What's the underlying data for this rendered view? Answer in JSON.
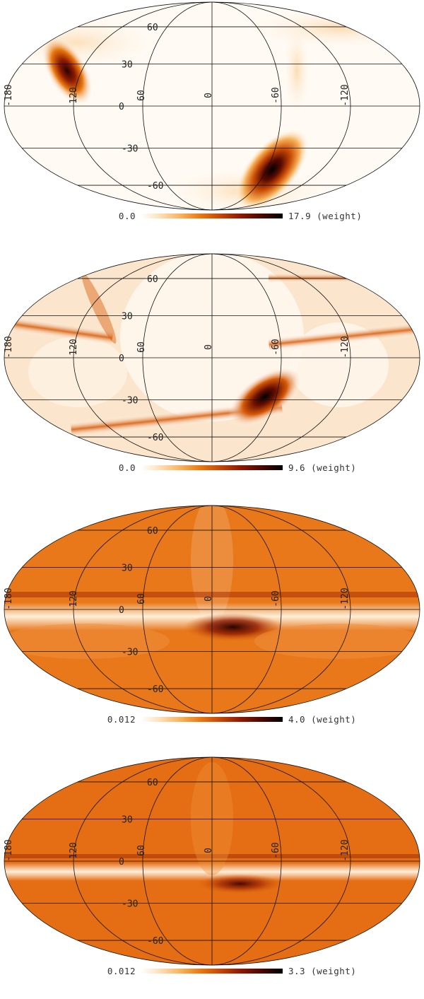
{
  "panels": [
    {
      "colorbar": {
        "min": "0.0",
        "max": "17.9",
        "unit": "(weight)"
      },
      "grid_labels": {
        "lat": [
          "60",
          "30",
          "0",
          "-30",
          "-60"
        ],
        "lon": [
          "-180",
          "120",
          "60",
          "0",
          "-60",
          "-120"
        ]
      }
    },
    {
      "colorbar": {
        "min": "0.0",
        "max": "9.6",
        "unit": "(weight)"
      },
      "grid_labels": {
        "lat": [
          "60",
          "30",
          "0",
          "-30",
          "-60"
        ],
        "lon": [
          "-180",
          "120",
          "60",
          "0",
          "-60",
          "-120"
        ]
      }
    },
    {
      "colorbar": {
        "min": "0.012",
        "max": "4.0",
        "unit": "(weight)"
      },
      "grid_labels": {
        "lat": [
          "60",
          "30",
          "0",
          "-30",
          "-60"
        ],
        "lon": [
          "-180",
          "120",
          "60",
          "0",
          "-60",
          "-120"
        ]
      }
    },
    {
      "colorbar": {
        "min": "0.012",
        "max": "3.3",
        "unit": "(weight)"
      },
      "grid_labels": {
        "lat": [
          "60",
          "30",
          "0",
          "-30",
          "-60"
        ],
        "lon": [
          "-180",
          "120",
          "60",
          "0",
          "-60",
          "-120"
        ]
      }
    }
  ],
  "colors": {
    "cmap_low": "#ffffff",
    "cmap_mid": "#e8780f",
    "cmap_dark": "#8e1a02",
    "cmap_high": "#000000",
    "grid": "#111111"
  }
}
